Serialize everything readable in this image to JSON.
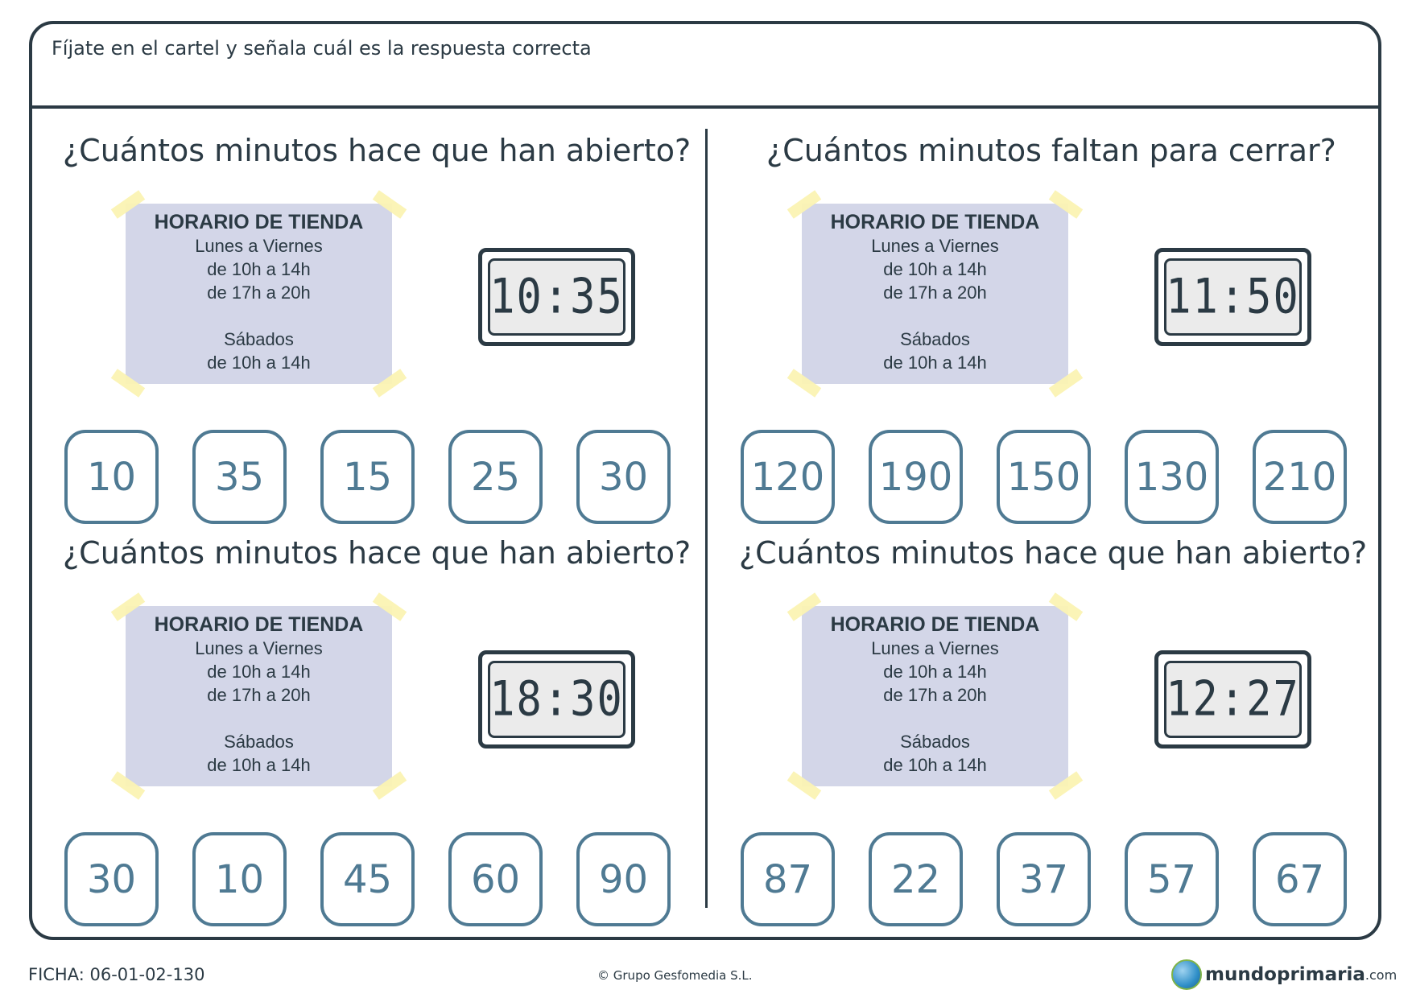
{
  "instruction": "Fíjate en el cartel y señala cuál es la respuesta correcta",
  "exercises": [
    {
      "question": "¿Cuántos minutos hace que han abierto?",
      "sign": {
        "title": "HORARIO DE TIENDA",
        "line1": "Lunes a Viernes",
        "line2": "de 10h a 14h",
        "line3": "de 17h a 20h",
        "line4": "Sábados",
        "line5": "de 10h a 14h"
      },
      "clock": "10:35",
      "options": [
        "10",
        "35",
        "15",
        "25",
        "30"
      ]
    },
    {
      "question": "¿Cuántos minutos faltan para cerrar?",
      "sign": {
        "title": "HORARIO DE TIENDA",
        "line1": "Lunes a Viernes",
        "line2": "de 10h a 14h",
        "line3": "de 17h a 20h",
        "line4": "Sábados",
        "line5": "de 10h a 14h"
      },
      "clock": "11:50",
      "options": [
        "120",
        "190",
        "150",
        "130",
        "210"
      ]
    },
    {
      "question": "¿Cuántos minutos hace que han abierto?",
      "sign": {
        "title": "HORARIO DE TIENDA",
        "line1": "Lunes a Viernes",
        "line2": "de 10h a 14h",
        "line3": "de 17h a 20h",
        "line4": "Sábados",
        "line5": "de 10h a 14h"
      },
      "clock": "18:30",
      "options": [
        "30",
        "10",
        "45",
        "60",
        "90"
      ]
    },
    {
      "question": "¿Cuántos minutos hace que han abierto?",
      "sign": {
        "title": "HORARIO DE TIENDA",
        "line1": "Lunes a Viernes",
        "line2": "de 10h a 14h",
        "line3": "de 17h a 20h",
        "line4": "Sábados",
        "line5": "de 10h a 14h"
      },
      "clock": "12:27",
      "options": [
        "87",
        "22",
        "37",
        "57",
        "67"
      ]
    }
  ],
  "footer": {
    "ficha": "FICHA: 06-01-02-130",
    "copyright": "© Grupo Gesfomedia S.L.",
    "logo_name": "mundoprimaria",
    "logo_suffix": ".com"
  },
  "colors": {
    "frame": "#2b3a44",
    "option_border": "#4f7a93",
    "sign_background": "#d3d6e8",
    "tape": "#fbf3b3"
  }
}
